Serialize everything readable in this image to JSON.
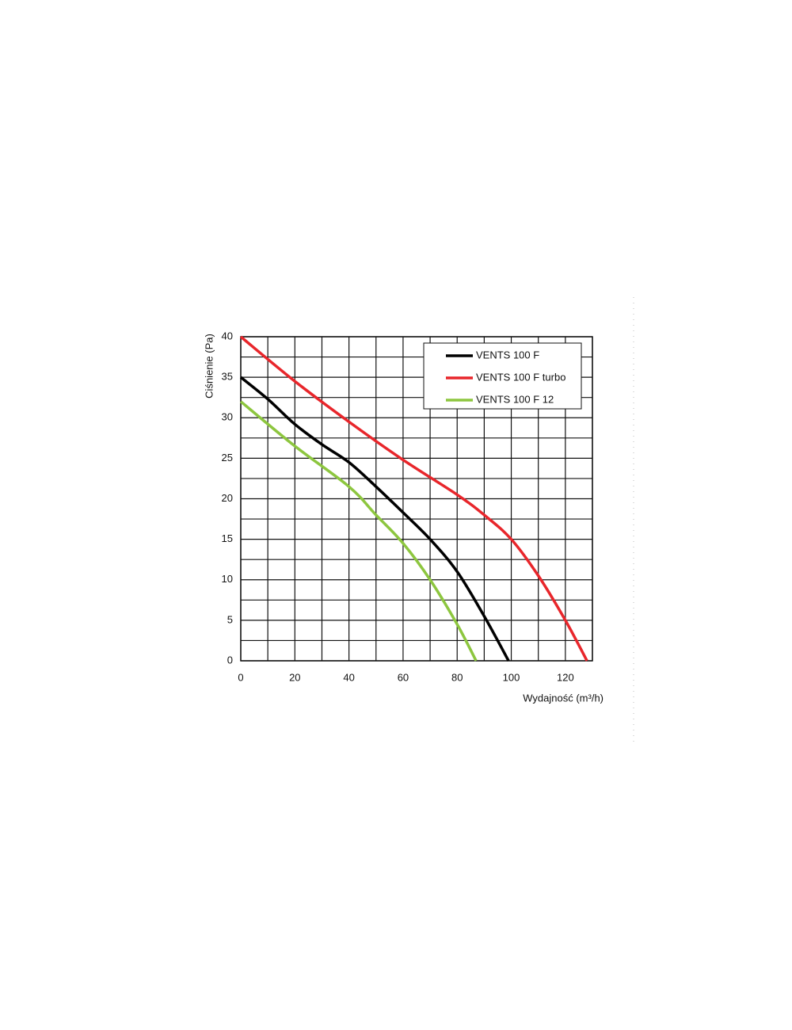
{
  "chart_data": {
    "type": "line",
    "xlabel": "Wydajność (m³/h)",
    "ylabel": "Ciśnienie (Pa)",
    "xlim": [
      0,
      130
    ],
    "ylim": [
      0,
      40
    ],
    "xticks": [
      0,
      20,
      40,
      60,
      80,
      100,
      120
    ],
    "yticks": [
      0,
      5,
      10,
      15,
      20,
      25,
      30,
      35,
      40
    ],
    "xminor": [
      10,
      30,
      50,
      70,
      90,
      110,
      130
    ],
    "yminor": [
      2.5,
      7.5,
      12.5,
      17.5,
      22.5,
      27.5,
      32.5,
      37.5
    ],
    "grid": true,
    "legend": "upper right",
    "series": [
      {
        "name": "VENTS 100 F",
        "color": "#000000",
        "x": [
          0,
          10,
          20,
          30,
          40,
          50,
          60,
          70,
          80,
          90,
          99
        ],
        "values": [
          35,
          32.3,
          29.2,
          26.7,
          24.5,
          21.5,
          18.3,
          15,
          11,
          5.5,
          0
        ]
      },
      {
        "name": "VENTS 100 F turbo",
        "color": "#e8262b",
        "x": [
          0,
          20,
          40,
          60,
          80,
          90,
          100,
          110,
          120,
          128
        ],
        "values": [
          40,
          34.5,
          29.5,
          24.8,
          20.5,
          18,
          15,
          10.5,
          5,
          0
        ]
      },
      {
        "name": "VENTS 100 F 12",
        "color": "#8dc63f",
        "x": [
          0,
          20,
          40,
          50,
          60,
          70,
          80,
          87
        ],
        "values": [
          32,
          26.5,
          21.5,
          18,
          14.5,
          10,
          4.5,
          0
        ]
      }
    ]
  }
}
